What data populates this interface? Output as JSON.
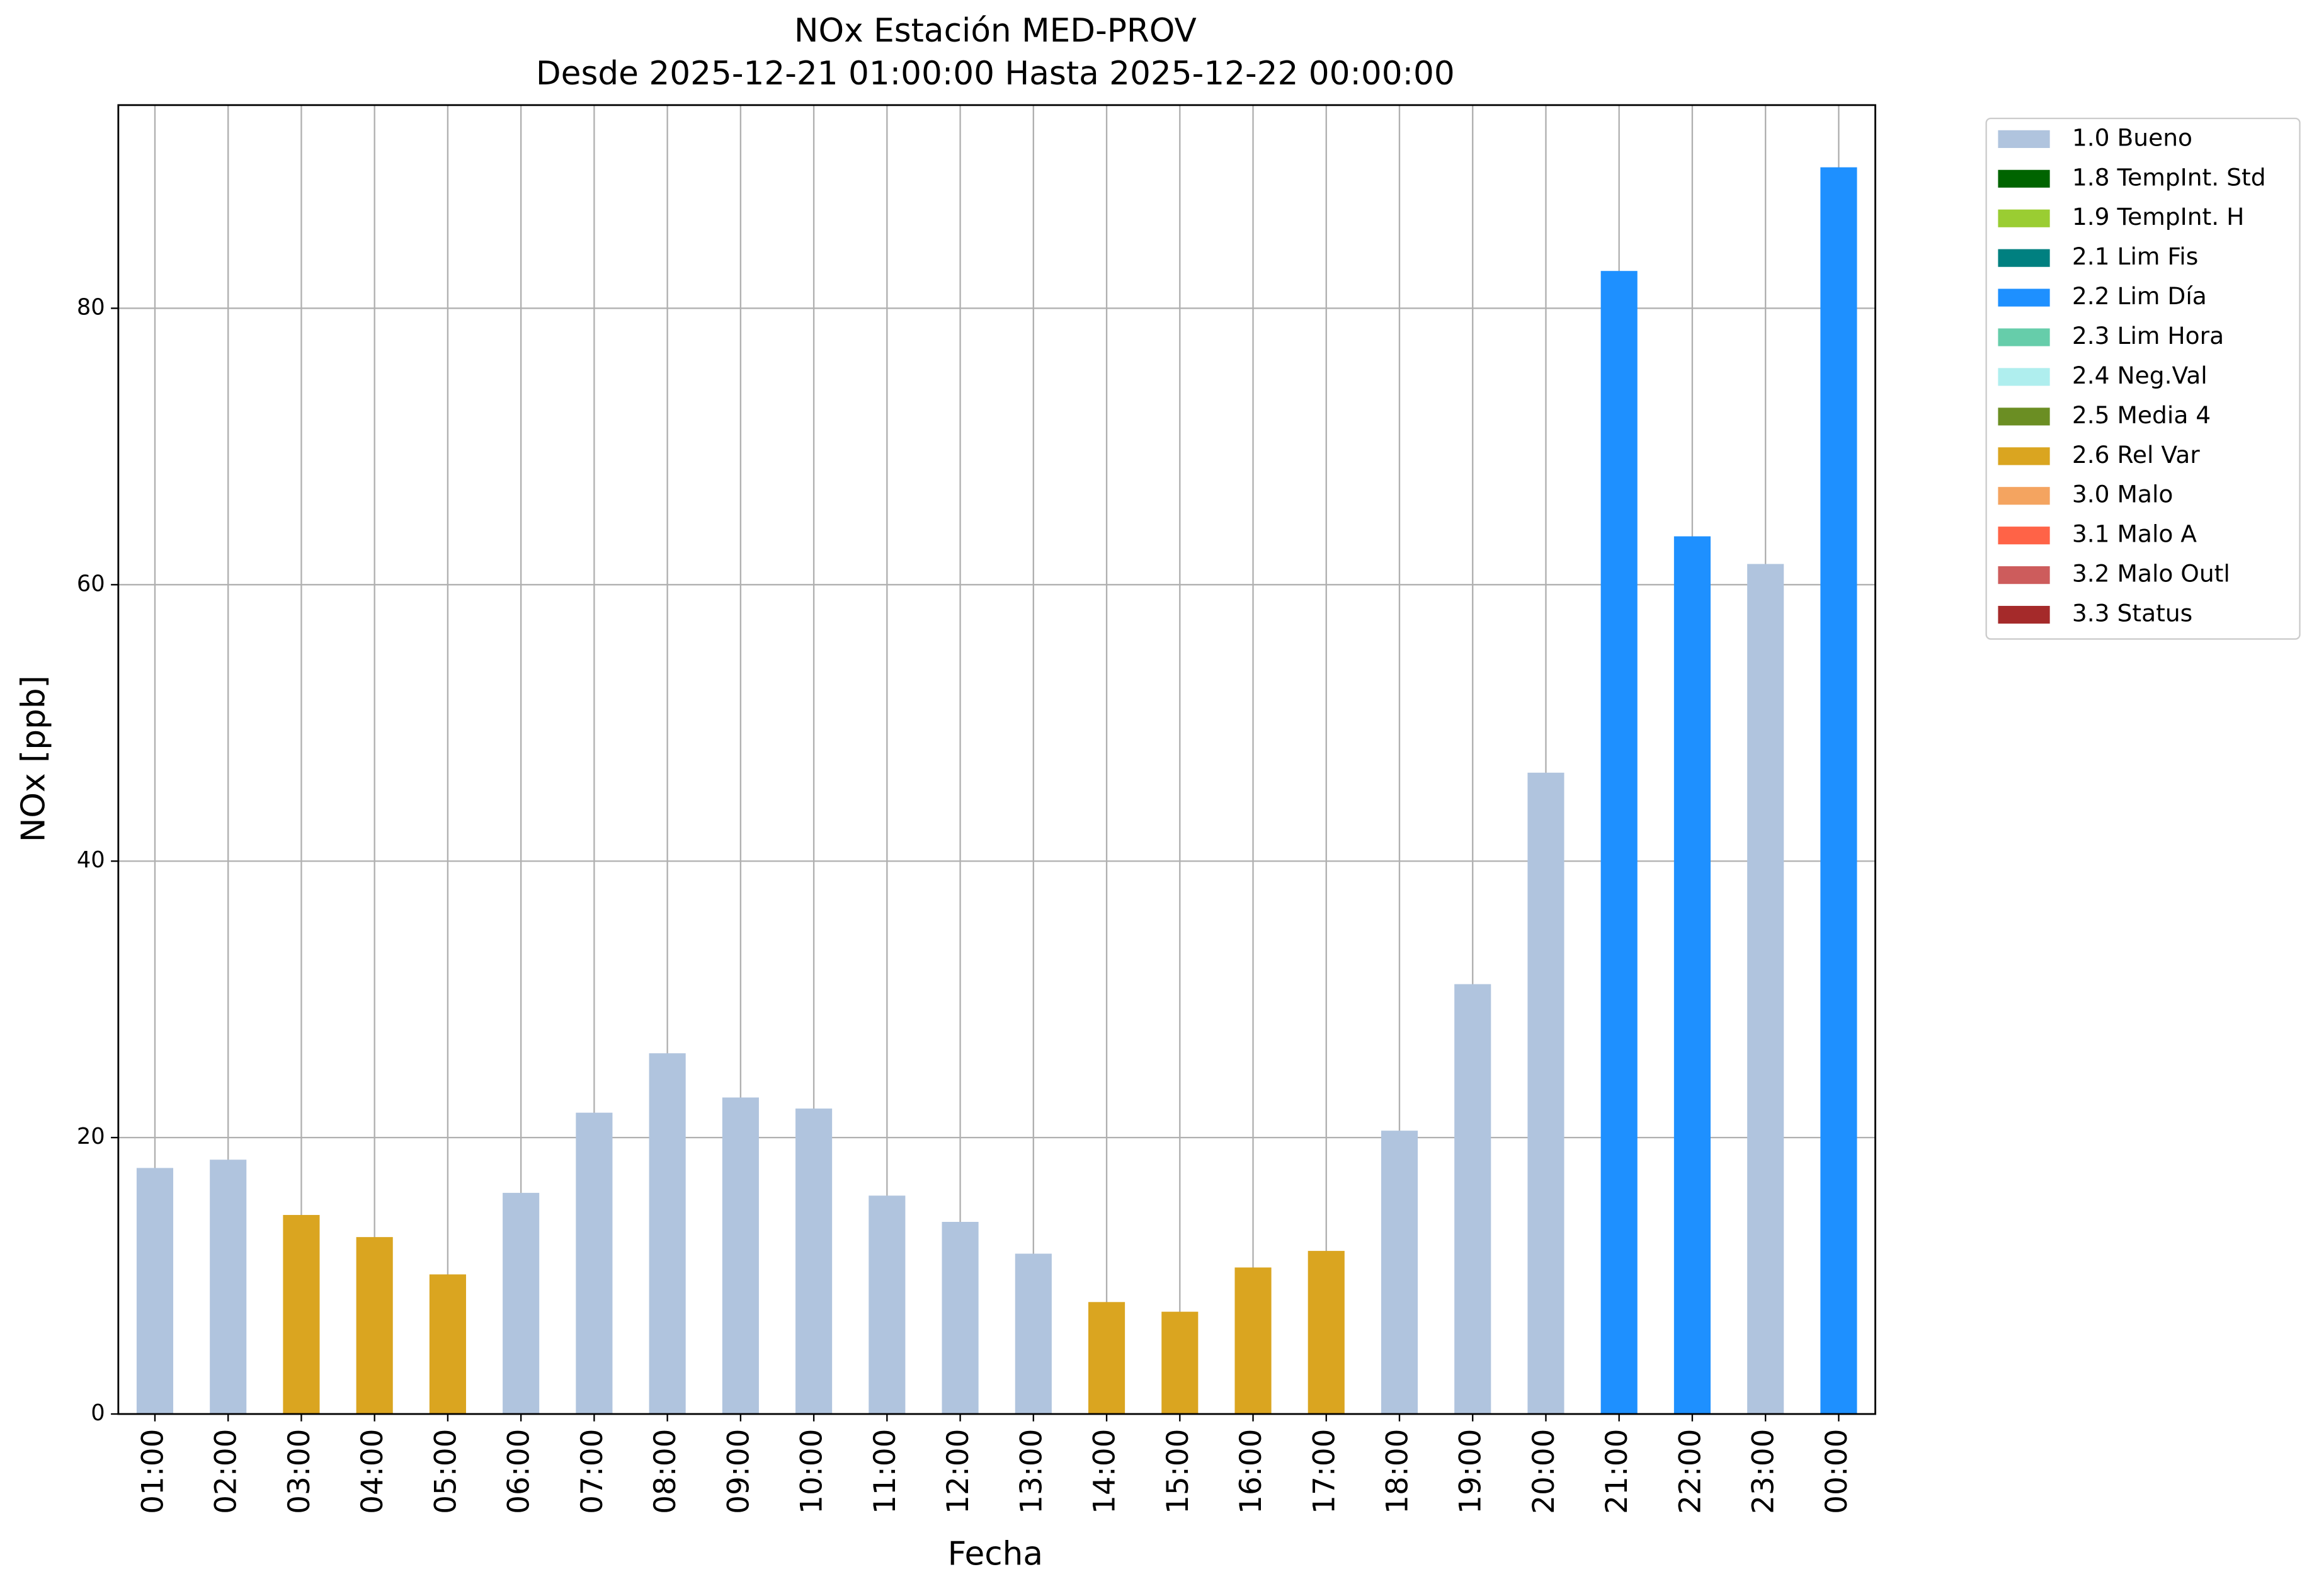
{
  "chart_data": {
    "type": "bar",
    "title": "NOx Estación MED-PROV",
    "subtitle": "Desde 2025-12-21 01:00:00 Hasta 2025-12-22 00:00:00",
    "x_label": "Fecha",
    "y_label": "NOx [ppb]",
    "categories": [
      "01:00",
      "02:00",
      "03:00",
      "04:00",
      "05:00",
      "06:00",
      "07:00",
      "08:00",
      "09:00",
      "10:00",
      "11:00",
      "12:00",
      "13:00",
      "14:00",
      "15:00",
      "16:00",
      "17:00",
      "18:00",
      "19:00",
      "20:00",
      "21:00",
      "22:00",
      "23:00",
      "00:00"
    ],
    "series": [
      {
        "name": "1.0 Bueno",
        "color": "#b0c4de",
        "values": [
          17.8,
          18.4,
          null,
          null,
          null,
          16.0,
          21.8,
          26.1,
          22.9,
          22.1,
          15.8,
          13.9,
          11.6,
          null,
          null,
          null,
          null,
          20.5,
          31.1,
          46.4,
          null,
          null,
          61.5,
          null
        ]
      },
      {
        "name": "1.8 TempInt. Std",
        "color": "#006400",
        "values": [
          null,
          null,
          null,
          null,
          null,
          null,
          null,
          null,
          null,
          null,
          null,
          null,
          null,
          null,
          null,
          null,
          null,
          null,
          null,
          null,
          null,
          null,
          null,
          null
        ]
      },
      {
        "name": "1.9 TempInt. H",
        "color": "#9acd32",
        "values": [
          null,
          null,
          null,
          null,
          null,
          null,
          null,
          null,
          null,
          null,
          null,
          null,
          null,
          null,
          null,
          null,
          null,
          null,
          null,
          null,
          null,
          null,
          null,
          null
        ]
      },
      {
        "name": "2.1 Lim Fis",
        "color": "#008080",
        "values": [
          null,
          null,
          null,
          null,
          null,
          null,
          null,
          null,
          null,
          null,
          null,
          null,
          null,
          null,
          null,
          null,
          null,
          null,
          null,
          null,
          null,
          null,
          null,
          null
        ]
      },
      {
        "name": "2.2 Lim Día",
        "color": "#1e90ff",
        "values": [
          null,
          null,
          null,
          null,
          null,
          null,
          null,
          null,
          null,
          null,
          null,
          null,
          null,
          null,
          null,
          null,
          null,
          null,
          null,
          null,
          82.7,
          63.5,
          null,
          90.2
        ]
      },
      {
        "name": "2.3 Lim Hora",
        "color": "#66cdaa",
        "values": [
          null,
          null,
          null,
          null,
          null,
          null,
          null,
          null,
          null,
          null,
          null,
          null,
          null,
          null,
          null,
          null,
          null,
          null,
          null,
          null,
          null,
          null,
          null,
          null
        ]
      },
      {
        "name": "2.4 Neg.Val",
        "color": "#afeeee",
        "values": [
          null,
          null,
          null,
          null,
          null,
          null,
          null,
          null,
          null,
          null,
          null,
          null,
          null,
          null,
          null,
          null,
          null,
          null,
          null,
          null,
          null,
          null,
          null,
          null
        ]
      },
      {
        "name": "2.5 Media 4",
        "color": "#6b8e23",
        "values": [
          null,
          null,
          null,
          null,
          null,
          null,
          null,
          null,
          null,
          null,
          null,
          null,
          null,
          null,
          null,
          null,
          null,
          null,
          null,
          null,
          null,
          null,
          null,
          null
        ]
      },
      {
        "name": "2.6 Rel Var",
        "color": "#daa520",
        "values": [
          null,
          null,
          14.4,
          12.8,
          10.1,
          null,
          null,
          null,
          null,
          null,
          null,
          null,
          null,
          8.1,
          7.4,
          10.6,
          11.8,
          null,
          null,
          null,
          null,
          null,
          null,
          null
        ]
      },
      {
        "name": "3.0 Malo",
        "color": "#f4a460",
        "values": [
          null,
          null,
          null,
          null,
          null,
          null,
          null,
          null,
          null,
          null,
          null,
          null,
          null,
          null,
          null,
          null,
          null,
          null,
          null,
          null,
          null,
          null,
          null,
          null
        ]
      },
      {
        "name": "3.1 Malo A",
        "color": "#ff6347",
        "values": [
          null,
          null,
          null,
          null,
          null,
          null,
          null,
          null,
          null,
          null,
          null,
          null,
          null,
          null,
          null,
          null,
          null,
          null,
          null,
          null,
          null,
          null,
          null,
          null
        ]
      },
      {
        "name": "3.2 Malo Outl",
        "color": "#cd5c5c",
        "values": [
          null,
          null,
          null,
          null,
          null,
          null,
          null,
          null,
          null,
          null,
          null,
          null,
          null,
          null,
          null,
          null,
          null,
          null,
          null,
          null,
          null,
          null,
          null,
          null
        ]
      },
      {
        "name": "3.3 Status",
        "color": "#a52a2a",
        "values": [
          null,
          null,
          null,
          null,
          null,
          null,
          null,
          null,
          null,
          null,
          null,
          null,
          null,
          null,
          null,
          null,
          null,
          null,
          null,
          null,
          null,
          null,
          null,
          null
        ]
      }
    ],
    "ylim": [
      0,
      94.7
    ],
    "yticks": [
      0,
      20,
      40,
      60,
      80
    ],
    "grid": true,
    "stacked": true,
    "legend": "outside right"
  }
}
